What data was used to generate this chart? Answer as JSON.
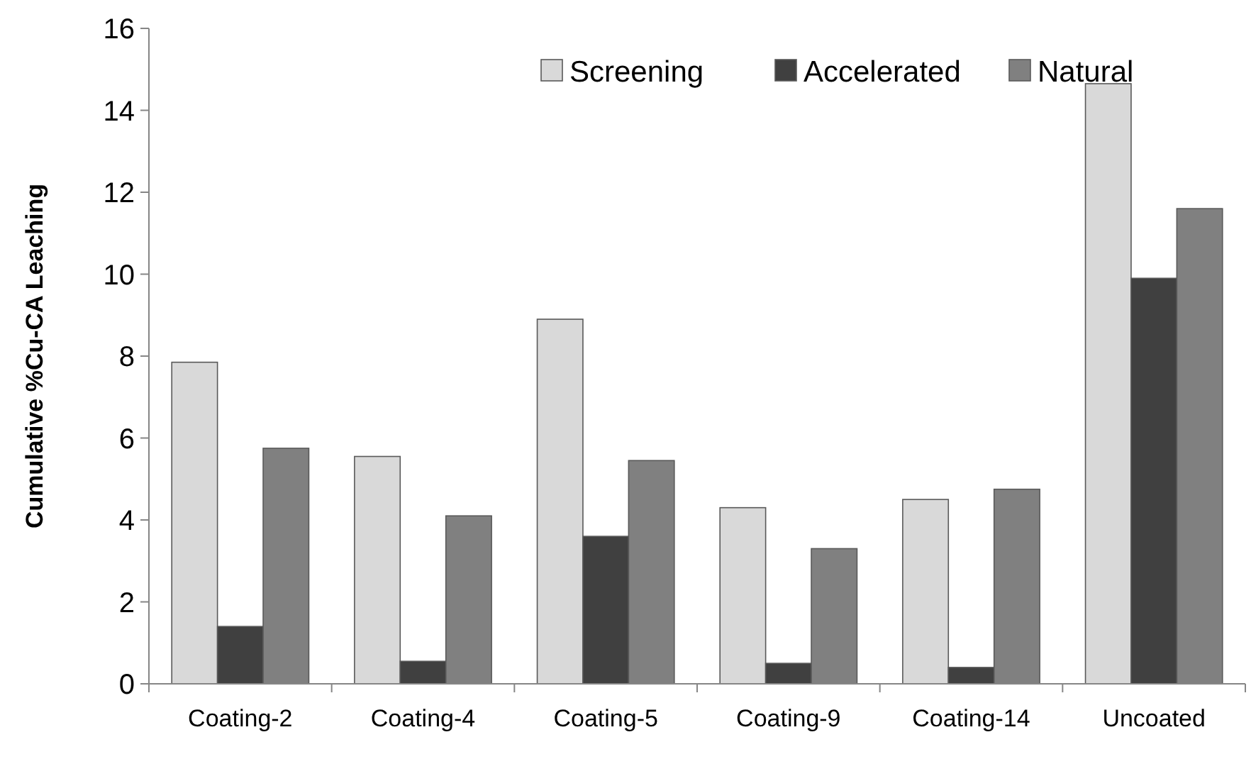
{
  "chart_data": {
    "type": "bar",
    "ylabel": "Cumulative %Cu-CA Leaching",
    "categories": [
      "Coating-2",
      "Coating-4",
      "Coating-5",
      "Coating-9",
      "Coating-14",
      "Uncoated"
    ],
    "series": [
      {
        "name": "Screening",
        "color": "#d9d9d9",
        "values": [
          7.85,
          5.55,
          8.9,
          4.3,
          4.5,
          14.65
        ]
      },
      {
        "name": "Accelerated",
        "color": "#404040",
        "values": [
          1.4,
          0.55,
          3.6,
          0.5,
          0.4,
          9.9
        ]
      },
      {
        "name": "Natural",
        "color": "#808080",
        "values": [
          5.75,
          4.1,
          5.45,
          3.3,
          4.75,
          11.6
        ]
      }
    ],
    "ylim": [
      0,
      16
    ],
    "yticks": [
      0,
      2,
      4,
      6,
      8,
      10,
      12,
      14,
      16
    ],
    "grid": false,
    "legend": "top"
  }
}
